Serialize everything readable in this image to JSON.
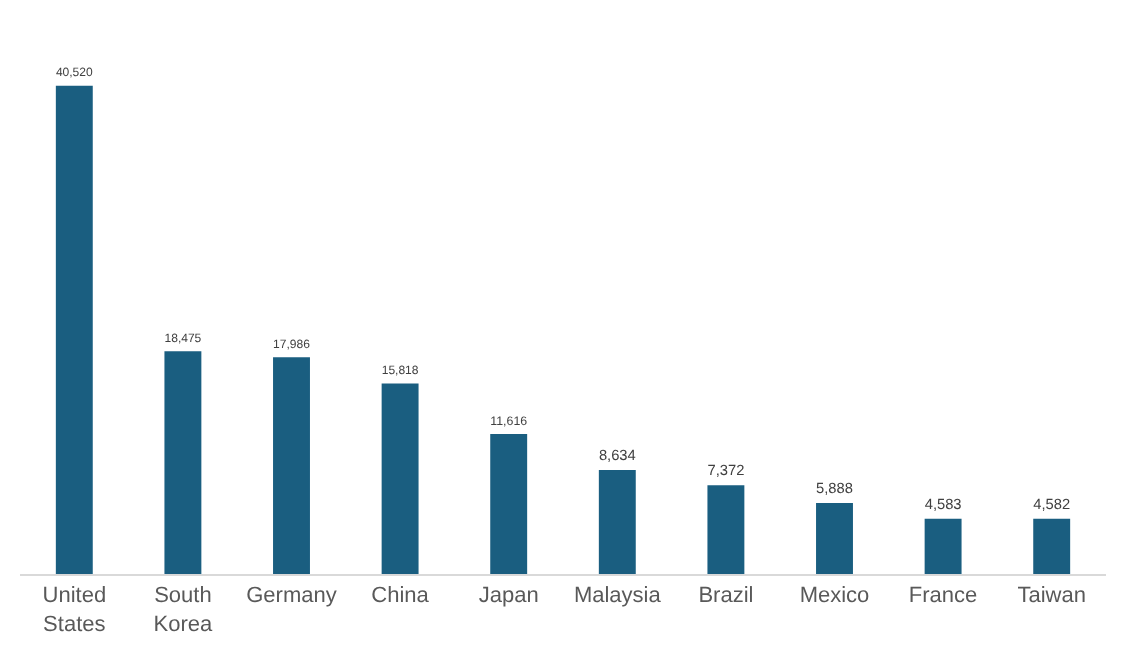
{
  "chart_data": {
    "type": "bar",
    "categories": [
      "United States",
      "South Korea",
      "Germany",
      "China",
      "Japan",
      "Malaysia",
      "Brazil",
      "Mexico",
      "France",
      "Taiwan"
    ],
    "values": [
      40520,
      18475,
      17986,
      15818,
      11616,
      8634,
      7372,
      5888,
      4583,
      4582
    ],
    "color": "#1a5e80",
    "value_labels": [
      "40,520",
      "18,475",
      "17,986",
      "15,818",
      "11,616",
      "8,634",
      "7,372",
      "5,888",
      "4,583",
      "4,582"
    ]
  }
}
